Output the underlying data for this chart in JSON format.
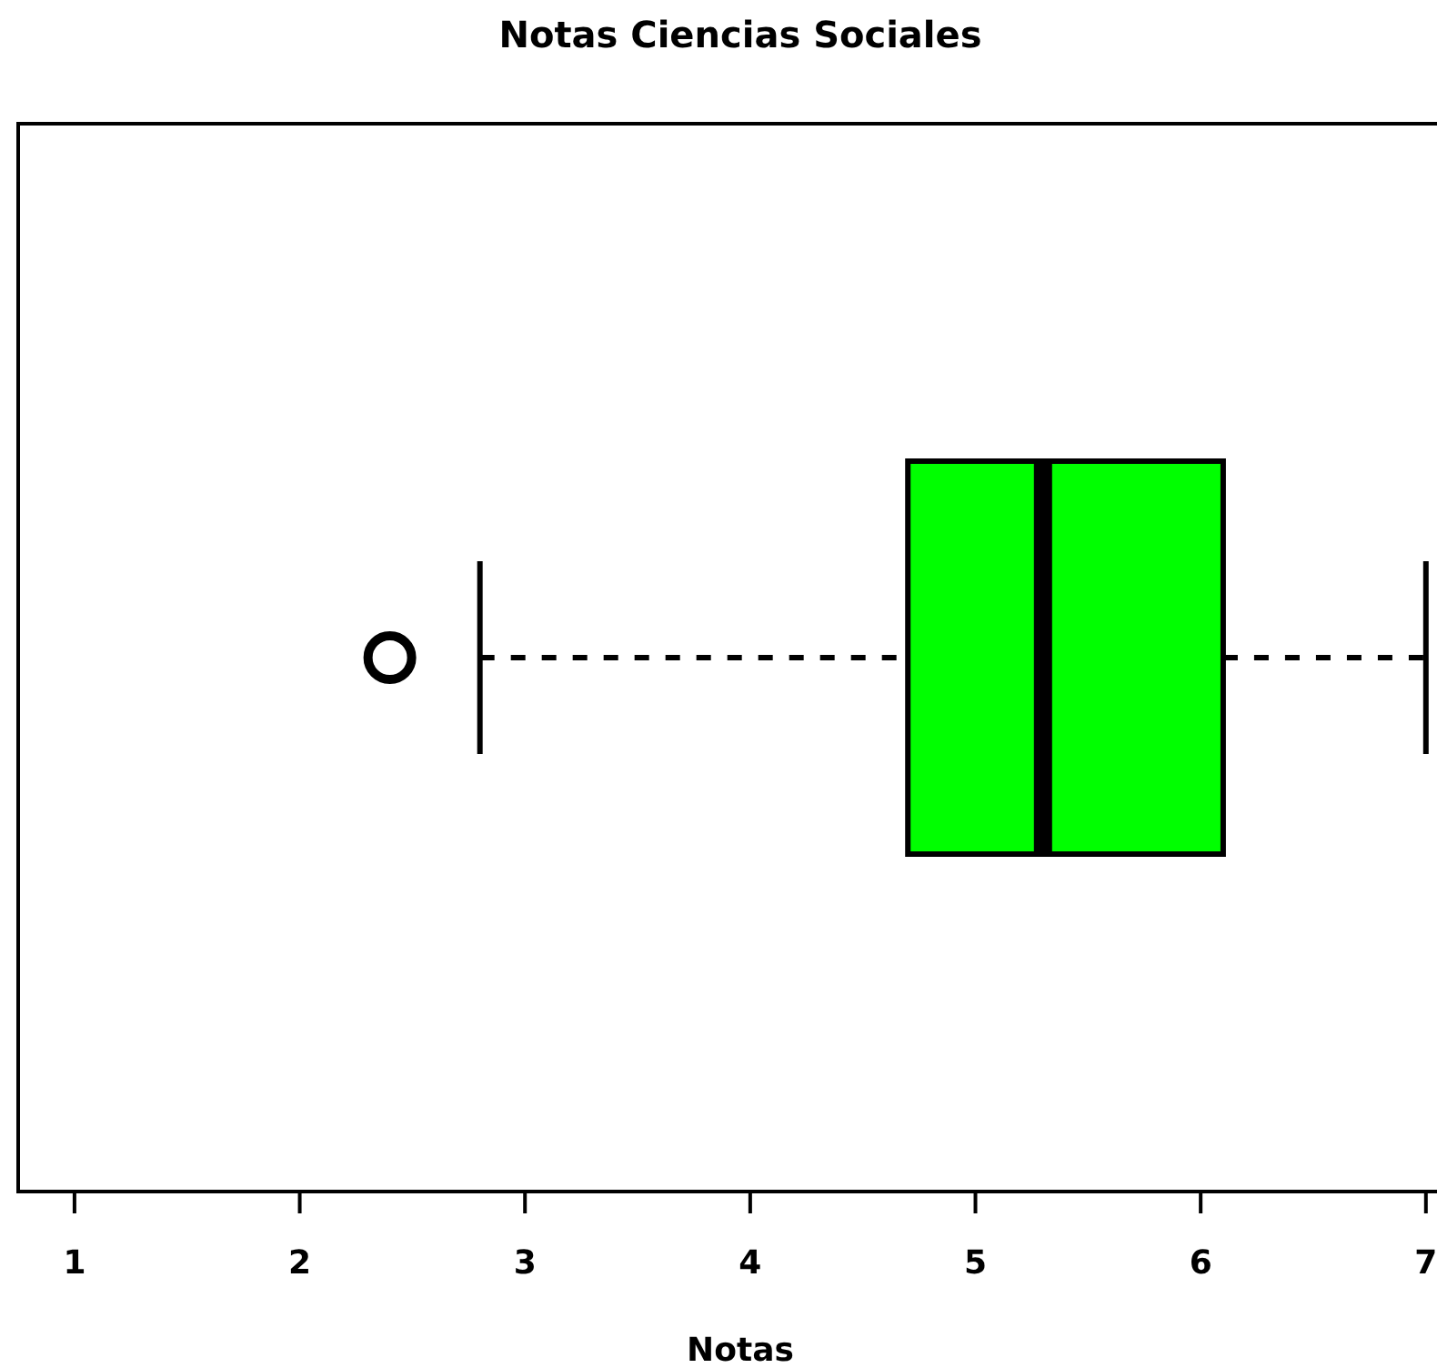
{
  "chart_data": {
    "type": "box",
    "title": "Notas Ciencias Sociales",
    "xlabel": "Notas",
    "orientation": "horizontal",
    "categories": [
      null
    ],
    "color": "#00ff00",
    "boxes": [
      {
        "low": 2.8,
        "q1": 4.7,
        "median": 5.3,
        "q3": 6.1,
        "high": 7.0,
        "outliers": [
          2.4
        ]
      }
    ],
    "xlim": [
      0.75,
      7.13
    ],
    "xticks": [
      1,
      2,
      3,
      4,
      5,
      6,
      7
    ]
  }
}
